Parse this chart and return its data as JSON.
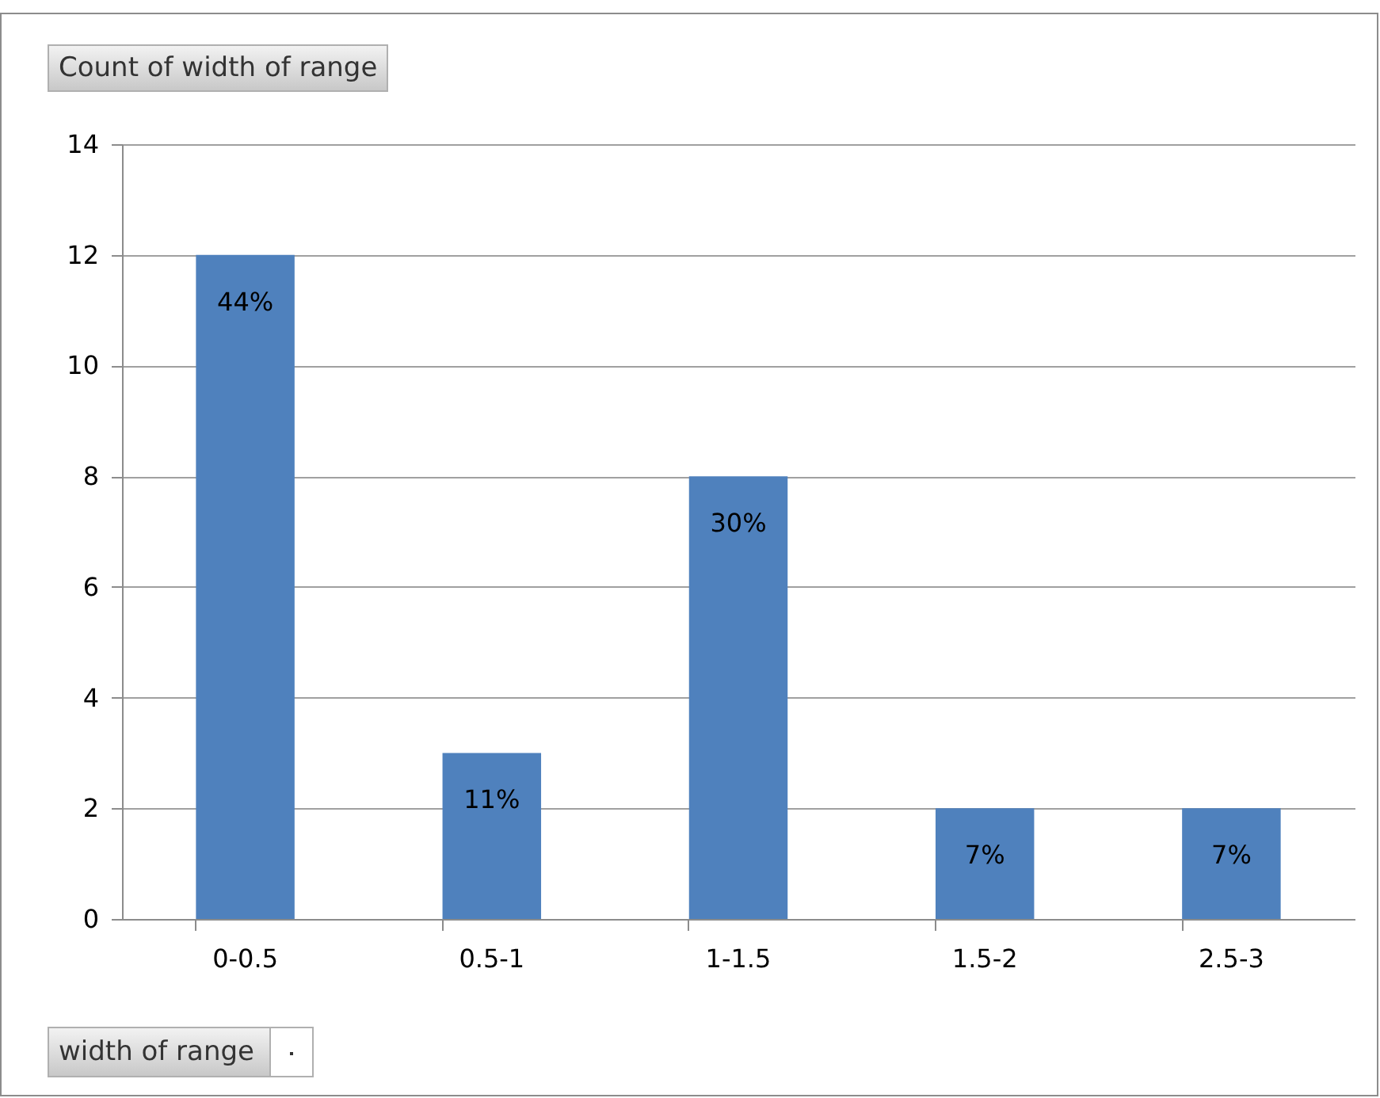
{
  "chart_data": {
    "type": "bar",
    "title": "Count of width of range",
    "xlabel": "width of range",
    "categories": [
      "0-0.5",
      "0.5-1",
      "1-1.5",
      "1.5-2",
      "2.5-3"
    ],
    "values": [
      12,
      3,
      8,
      2,
      2
    ],
    "annotations": [
      {
        "text": "44%",
        "x": "0-0.5",
        "y": 12
      },
      {
        "text": "11%",
        "x": "0.5-1",
        "y": 3
      },
      {
        "text": "30%",
        "x": "1-1.5",
        "y": 8
      },
      {
        "text": "7%",
        "x": "1.5-2",
        "y": 2
      },
      {
        "text": "7%",
        "x": "2.5-3",
        "y": 2
      }
    ],
    "color": "#4f81bd",
    "ylim": [
      0,
      14
    ],
    "yticks": [
      0,
      2,
      4,
      6,
      8,
      10,
      12,
      14
    ],
    "grid": "y"
  }
}
